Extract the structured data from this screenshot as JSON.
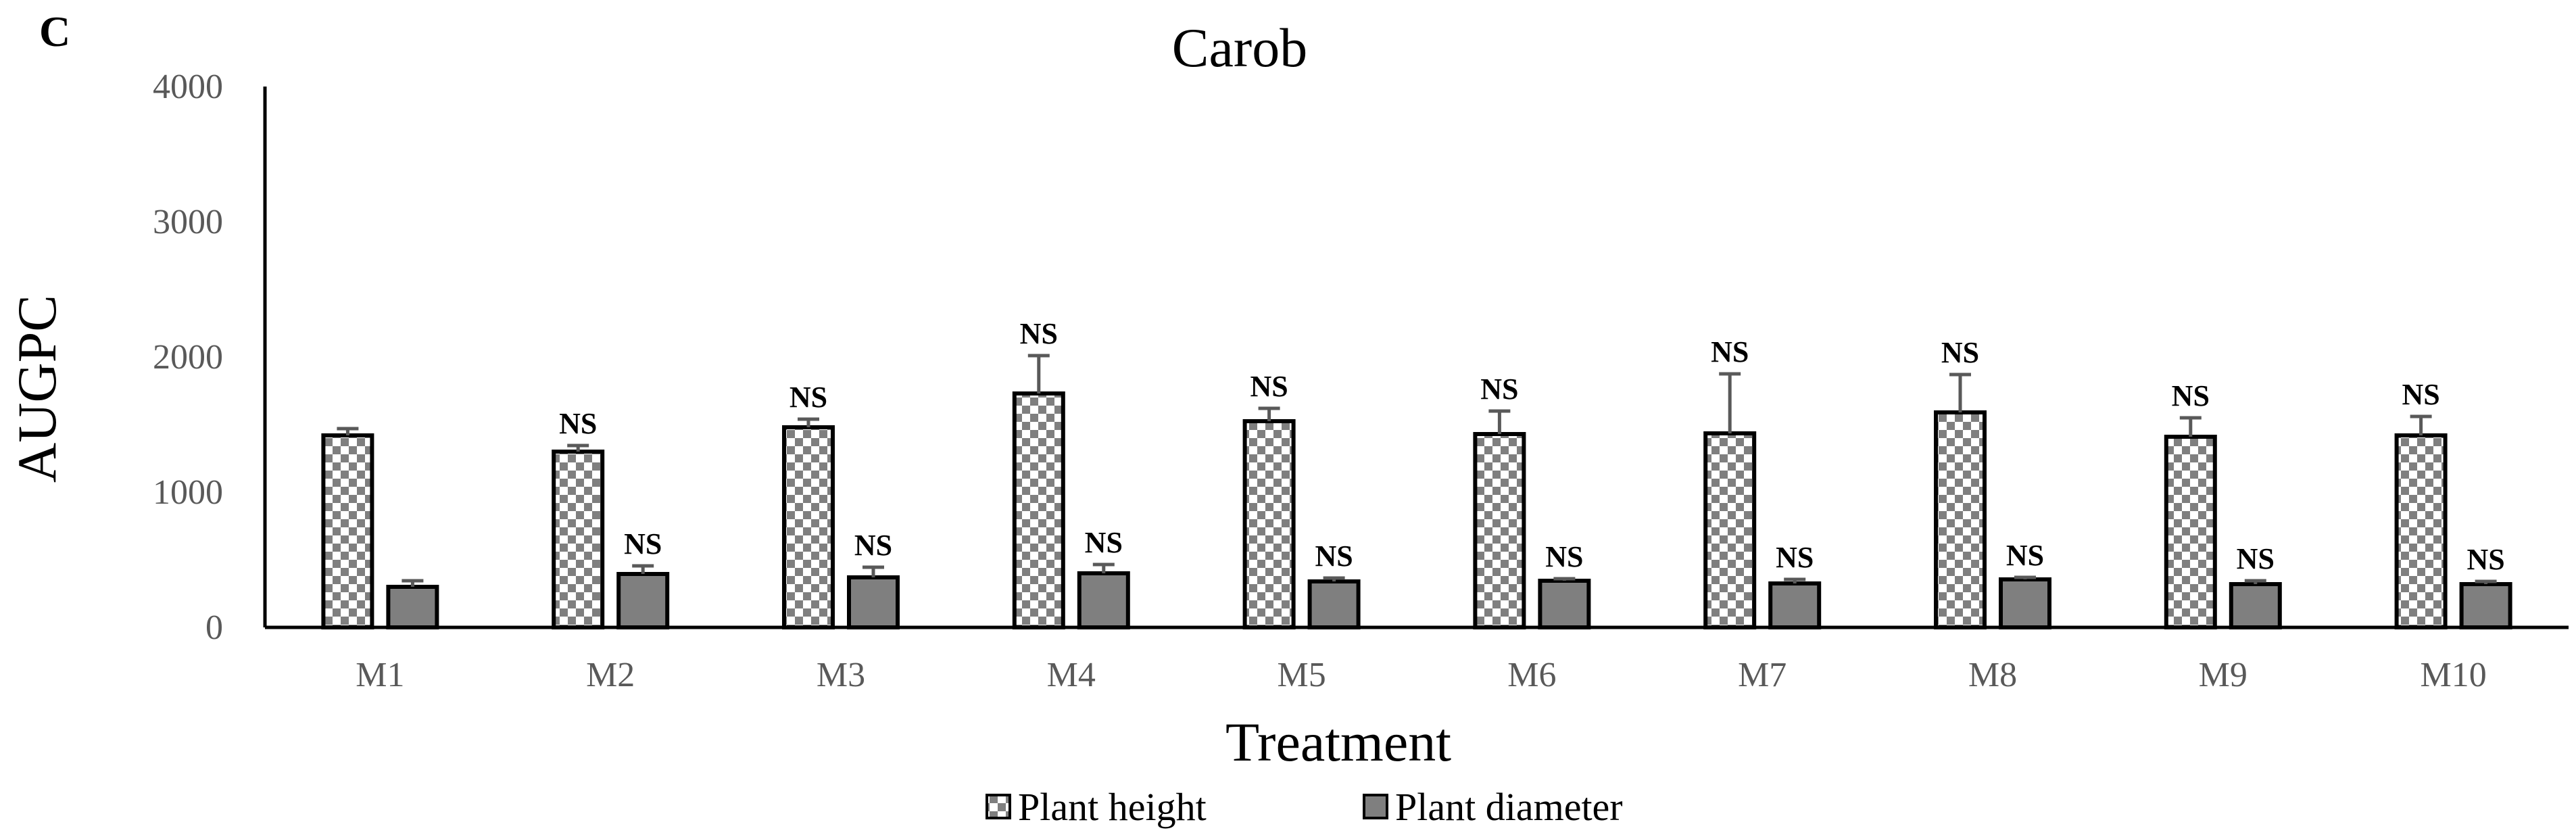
{
  "panel_label": "C",
  "chart_data": {
    "type": "bar",
    "title": "Carob",
    "xlabel": "Treatment",
    "ylabel": "AUGPC",
    "ylim": [
      0,
      4000
    ],
    "yticks": [
      0,
      1000,
      2000,
      3000,
      4000
    ],
    "grid": false,
    "legend_position": "bottom",
    "categories": [
      "M1",
      "M2",
      "M3",
      "M4",
      "M5",
      "M6",
      "M7",
      "M8",
      "M9",
      "M10"
    ],
    "series": [
      {
        "name": "Plant height",
        "pattern": "checkered",
        "color": "#7f7f7f",
        "values": [
          1420,
          1300,
          1480,
          1730,
          1525,
          1430,
          1435,
          1590,
          1410,
          1420
        ],
        "errors": [
          50,
          45,
          60,
          280,
          95,
          170,
          440,
          280,
          140,
          140
        ],
        "significance": [
          "",
          "NS",
          "NS",
          "NS",
          "NS",
          "NS",
          "NS",
          "NS",
          "NS",
          "NS"
        ]
      },
      {
        "name": "Plant diameter",
        "pattern": "solid",
        "color": "#7f7f7f",
        "values": [
          300,
          395,
          370,
          400,
          340,
          345,
          325,
          355,
          320,
          320
        ],
        "errors": [
          45,
          60,
          75,
          65,
          25,
          15,
          30,
          15,
          25,
          20
        ],
        "significance": [
          "",
          "NS",
          "NS",
          "NS",
          "NS",
          "NS",
          "NS",
          "NS",
          "NS",
          "NS"
        ]
      }
    ]
  }
}
